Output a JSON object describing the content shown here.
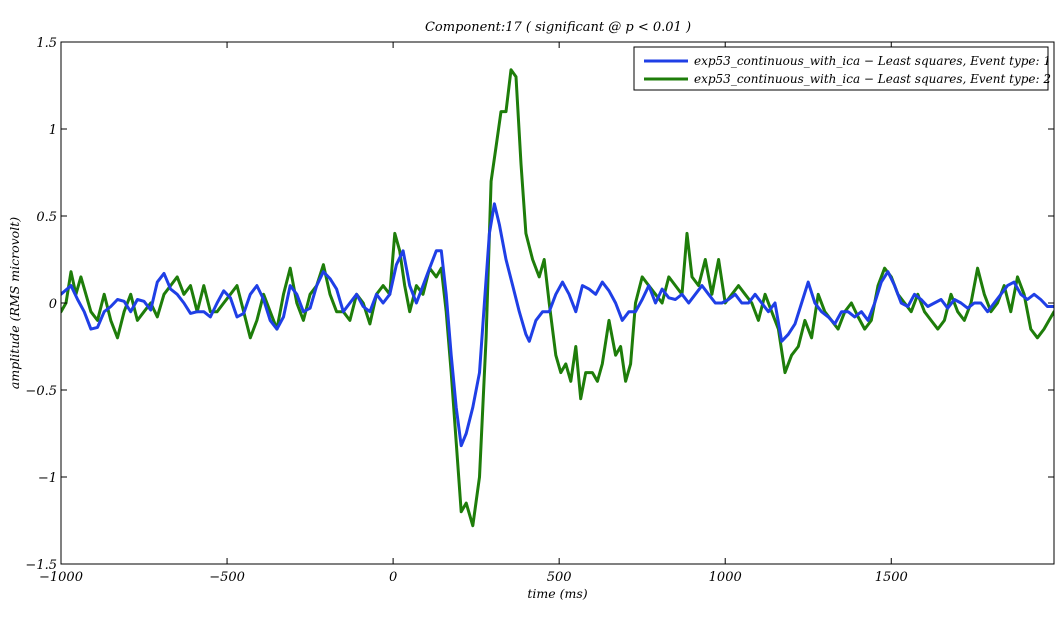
{
  "chart_data": {
    "type": "line",
    "title": "Component:17 ( significant @ p < 0.01 )",
    "xlabel": "time (ms)",
    "ylabel": "amplitude (RMS microvolt)",
    "xlim": [
      -1000,
      1990
    ],
    "ylim": [
      -1.5,
      1.5
    ],
    "xticks": [
      -1000,
      -500,
      0,
      500,
      1000,
      1500
    ],
    "xtick_labels": [
      "−1000",
      "−500",
      "0",
      "500",
      "1000",
      "1500"
    ],
    "yticks": [
      -1.5,
      -1,
      -0.5,
      0,
      0.5,
      1,
      1.5
    ],
    "ytick_labels": [
      "−1.5",
      "−1",
      "−0.5",
      "0",
      "0.5",
      "1",
      "1.5"
    ],
    "grid": false,
    "legend_position": "top-right",
    "series": [
      {
        "name": "exp53_continuous_with_ica − Least squares, Event type: 1",
        "color": "#1f3fe6",
        "points": [
          [
            -1000,
            0.05
          ],
          [
            -970,
            0.1
          ],
          [
            -950,
            0.02
          ],
          [
            -930,
            -0.05
          ],
          [
            -910,
            -0.15
          ],
          [
            -890,
            -0.14
          ],
          [
            -870,
            -0.05
          ],
          [
            -850,
            -0.02
          ],
          [
            -830,
            0.02
          ],
          [
            -810,
            0.01
          ],
          [
            -790,
            -0.05
          ],
          [
            -770,
            0.02
          ],
          [
            -750,
            0.01
          ],
          [
            -730,
            -0.04
          ],
          [
            -710,
            0.12
          ],
          [
            -690,
            0.17
          ],
          [
            -670,
            0.08
          ],
          [
            -650,
            0.05
          ],
          [
            -630,
            0.0
          ],
          [
            -610,
            -0.06
          ],
          [
            -590,
            -0.05
          ],
          [
            -570,
            -0.05
          ],
          [
            -550,
            -0.08
          ],
          [
            -530,
            0.0
          ],
          [
            -510,
            0.07
          ],
          [
            -490,
            0.03
          ],
          [
            -470,
            -0.08
          ],
          [
            -450,
            -0.06
          ],
          [
            -430,
            0.05
          ],
          [
            -410,
            0.1
          ],
          [
            -390,
            0.02
          ],
          [
            -370,
            -0.1
          ],
          [
            -350,
            -0.15
          ],
          [
            -330,
            -0.08
          ],
          [
            -310,
            0.1
          ],
          [
            -290,
            0.05
          ],
          [
            -270,
            -0.05
          ],
          [
            -250,
            -0.03
          ],
          [
            -230,
            0.1
          ],
          [
            -210,
            0.18
          ],
          [
            -190,
            0.14
          ],
          [
            -170,
            0.08
          ],
          [
            -150,
            -0.05
          ],
          [
            -130,
            0.0
          ],
          [
            -110,
            0.05
          ],
          [
            -90,
            -0.02
          ],
          [
            -70,
            -0.05
          ],
          [
            -50,
            0.05
          ],
          [
            -30,
            0.0
          ],
          [
            -10,
            0.05
          ],
          [
            10,
            0.22
          ],
          [
            30,
            0.3
          ],
          [
            50,
            0.1
          ],
          [
            70,
            0.0
          ],
          [
            90,
            0.1
          ],
          [
            110,
            0.2
          ],
          [
            130,
            0.3
          ],
          [
            145,
            0.3
          ],
          [
            160,
            0.05
          ],
          [
            175,
            -0.3
          ],
          [
            190,
            -0.6
          ],
          [
            205,
            -0.82
          ],
          [
            220,
            -0.75
          ],
          [
            240,
            -0.6
          ],
          [
            260,
            -0.4
          ],
          [
            275,
            0.0
          ],
          [
            290,
            0.4
          ],
          [
            305,
            0.57
          ],
          [
            320,
            0.45
          ],
          [
            340,
            0.25
          ],
          [
            360,
            0.1
          ],
          [
            380,
            -0.05
          ],
          [
            400,
            -0.18
          ],
          [
            410,
            -0.22
          ],
          [
            430,
            -0.1
          ],
          [
            450,
            -0.05
          ],
          [
            470,
            -0.05
          ],
          [
            490,
            0.05
          ],
          [
            510,
            0.12
          ],
          [
            530,
            0.05
          ],
          [
            550,
            -0.05
          ],
          [
            570,
            0.1
          ],
          [
            590,
            0.08
          ],
          [
            610,
            0.05
          ],
          [
            630,
            0.12
          ],
          [
            650,
            0.07
          ],
          [
            670,
            0.0
          ],
          [
            690,
            -0.1
          ],
          [
            710,
            -0.05
          ],
          [
            730,
            -0.05
          ],
          [
            750,
            0.02
          ],
          [
            770,
            0.1
          ],
          [
            790,
            0.0
          ],
          [
            810,
            0.08
          ],
          [
            830,
            0.03
          ],
          [
            850,
            0.02
          ],
          [
            870,
            0.05
          ],
          [
            890,
            0.0
          ],
          [
            910,
            0.05
          ],
          [
            930,
            0.1
          ],
          [
            950,
            0.05
          ],
          [
            970,
            0.0
          ],
          [
            990,
            0.0
          ],
          [
            1010,
            0.02
          ],
          [
            1030,
            0.05
          ],
          [
            1050,
            0.0
          ],
          [
            1070,
            0.0
          ],
          [
            1090,
            0.05
          ],
          [
            1110,
            0.0
          ],
          [
            1130,
            -0.05
          ],
          [
            1150,
            0.0
          ],
          [
            1170,
            -0.22
          ],
          [
            1190,
            -0.18
          ],
          [
            1210,
            -0.12
          ],
          [
            1230,
            0.0
          ],
          [
            1250,
            0.12
          ],
          [
            1270,
            0.0
          ],
          [
            1290,
            -0.05
          ],
          [
            1310,
            -0.08
          ],
          [
            1330,
            -0.12
          ],
          [
            1350,
            -0.05
          ],
          [
            1370,
            -0.05
          ],
          [
            1390,
            -0.08
          ],
          [
            1410,
            -0.05
          ],
          [
            1430,
            -0.1
          ],
          [
            1450,
            0.0
          ],
          [
            1470,
            0.12
          ],
          [
            1490,
            0.18
          ],
          [
            1510,
            0.1
          ],
          [
            1530,
            0.0
          ],
          [
            1550,
            -0.02
          ],
          [
            1570,
            0.05
          ],
          [
            1590,
            0.02
          ],
          [
            1610,
            -0.02
          ],
          [
            1630,
            0.0
          ],
          [
            1650,
            0.02
          ],
          [
            1670,
            -0.03
          ],
          [
            1690,
            0.02
          ],
          [
            1710,
            0.0
          ],
          [
            1730,
            -0.03
          ],
          [
            1750,
            0.0
          ],
          [
            1770,
            0.0
          ],
          [
            1790,
            -0.05
          ],
          [
            1810,
            0.0
          ],
          [
            1830,
            0.05
          ],
          [
            1850,
            0.1
          ],
          [
            1870,
            0.12
          ],
          [
            1890,
            0.05
          ],
          [
            1910,
            0.02
          ],
          [
            1930,
            0.05
          ],
          [
            1950,
            0.02
          ],
          [
            1970,
            -0.02
          ],
          [
            1990,
            -0.02
          ]
        ]
      },
      {
        "name": "exp53_continuous_with_ica − Least squares, Event type: 2",
        "color": "#1e7d0a",
        "points": [
          [
            -1000,
            -0.05
          ],
          [
            -985,
            0.0
          ],
          [
            -970,
            0.18
          ],
          [
            -955,
            0.05
          ],
          [
            -940,
            0.15
          ],
          [
            -925,
            0.05
          ],
          [
            -910,
            -0.05
          ],
          [
            -890,
            -0.1
          ],
          [
            -870,
            0.05
          ],
          [
            -850,
            -0.1
          ],
          [
            -830,
            -0.2
          ],
          [
            -810,
            -0.05
          ],
          [
            -790,
            0.05
          ],
          [
            -770,
            -0.1
          ],
          [
            -750,
            -0.05
          ],
          [
            -730,
            0.0
          ],
          [
            -710,
            -0.08
          ],
          [
            -690,
            0.05
          ],
          [
            -670,
            0.1
          ],
          [
            -650,
            0.15
          ],
          [
            -630,
            0.05
          ],
          [
            -610,
            0.1
          ],
          [
            -590,
            -0.05
          ],
          [
            -570,
            0.1
          ],
          [
            -550,
            -0.05
          ],
          [
            -530,
            -0.05
          ],
          [
            -510,
            0.0
          ],
          [
            -490,
            0.05
          ],
          [
            -470,
            0.1
          ],
          [
            -450,
            -0.05
          ],
          [
            -430,
            -0.2
          ],
          [
            -410,
            -0.1
          ],
          [
            -390,
            0.05
          ],
          [
            -370,
            -0.05
          ],
          [
            -350,
            -0.15
          ],
          [
            -330,
            0.05
          ],
          [
            -310,
            0.2
          ],
          [
            -290,
            0.0
          ],
          [
            -270,
            -0.1
          ],
          [
            -250,
            0.05
          ],
          [
            -230,
            0.1
          ],
          [
            -210,
            0.22
          ],
          [
            -190,
            0.05
          ],
          [
            -170,
            -0.05
          ],
          [
            -150,
            -0.05
          ],
          [
            -130,
            -0.1
          ],
          [
            -110,
            0.05
          ],
          [
            -90,
            0.0
          ],
          [
            -70,
            -0.12
          ],
          [
            -50,
            0.05
          ],
          [
            -30,
            0.1
          ],
          [
            -10,
            0.05
          ],
          [
            5,
            0.4
          ],
          [
            20,
            0.3
          ],
          [
            35,
            0.1
          ],
          [
            50,
            -0.05
          ],
          [
            70,
            0.1
          ],
          [
            90,
            0.05
          ],
          [
            110,
            0.2
          ],
          [
            130,
            0.15
          ],
          [
            145,
            0.2
          ],
          [
            160,
            -0.05
          ],
          [
            175,
            -0.4
          ],
          [
            190,
            -0.8
          ],
          [
            205,
            -1.2
          ],
          [
            220,
            -1.15
          ],
          [
            240,
            -1.28
          ],
          [
            260,
            -1.0
          ],
          [
            280,
            -0.2
          ],
          [
            295,
            0.7
          ],
          [
            310,
            0.9
          ],
          [
            325,
            1.1
          ],
          [
            340,
            1.1
          ],
          [
            355,
            1.34
          ],
          [
            370,
            1.3
          ],
          [
            385,
            0.8
          ],
          [
            400,
            0.4
          ],
          [
            420,
            0.25
          ],
          [
            440,
            0.15
          ],
          [
            455,
            0.25
          ],
          [
            470,
            0.0
          ],
          [
            490,
            -0.3
          ],
          [
            505,
            -0.4
          ],
          [
            520,
            -0.35
          ],
          [
            535,
            -0.45
          ],
          [
            550,
            -0.25
          ],
          [
            565,
            -0.55
          ],
          [
            580,
            -0.4
          ],
          [
            600,
            -0.4
          ],
          [
            615,
            -0.45
          ],
          [
            630,
            -0.35
          ],
          [
            650,
            -0.1
          ],
          [
            670,
            -0.3
          ],
          [
            685,
            -0.25
          ],
          [
            700,
            -0.45
          ],
          [
            715,
            -0.35
          ],
          [
            730,
            0.0
          ],
          [
            750,
            0.15
          ],
          [
            770,
            0.1
          ],
          [
            790,
            0.05
          ],
          [
            810,
            0.0
          ],
          [
            830,
            0.15
          ],
          [
            850,
            0.1
          ],
          [
            870,
            0.05
          ],
          [
            885,
            0.4
          ],
          [
            900,
            0.15
          ],
          [
            920,
            0.1
          ],
          [
            940,
            0.25
          ],
          [
            960,
            0.05
          ],
          [
            980,
            0.25
          ],
          [
            1000,
            0.0
          ],
          [
            1020,
            0.05
          ],
          [
            1040,
            0.1
          ],
          [
            1060,
            0.05
          ],
          [
            1080,
            0.0
          ],
          [
            1100,
            -0.1
          ],
          [
            1120,
            0.05
          ],
          [
            1140,
            -0.05
          ],
          [
            1160,
            -0.15
          ],
          [
            1180,
            -0.4
          ],
          [
            1200,
            -0.3
          ],
          [
            1220,
            -0.25
          ],
          [
            1240,
            -0.1
          ],
          [
            1260,
            -0.2
          ],
          [
            1280,
            0.05
          ],
          [
            1300,
            -0.05
          ],
          [
            1320,
            -0.1
          ],
          [
            1340,
            -0.15
          ],
          [
            1360,
            -0.05
          ],
          [
            1380,
            0.0
          ],
          [
            1400,
            -0.08
          ],
          [
            1420,
            -0.15
          ],
          [
            1440,
            -0.1
          ],
          [
            1460,
            0.1
          ],
          [
            1480,
            0.2
          ],
          [
            1500,
            0.15
          ],
          [
            1520,
            0.05
          ],
          [
            1540,
            0.0
          ],
          [
            1560,
            -0.05
          ],
          [
            1580,
            0.05
          ],
          [
            1600,
            -0.05
          ],
          [
            1620,
            -0.1
          ],
          [
            1640,
            -0.15
          ],
          [
            1660,
            -0.1
          ],
          [
            1680,
            0.05
          ],
          [
            1700,
            -0.05
          ],
          [
            1720,
            -0.1
          ],
          [
            1740,
            0.0
          ],
          [
            1760,
            0.2
          ],
          [
            1780,
            0.05
          ],
          [
            1800,
            -0.05
          ],
          [
            1820,
            0.0
          ],
          [
            1840,
            0.1
          ],
          [
            1860,
            -0.05
          ],
          [
            1880,
            0.15
          ],
          [
            1900,
            0.05
          ],
          [
            1920,
            -0.15
          ],
          [
            1940,
            -0.2
          ],
          [
            1960,
            -0.15
          ],
          [
            1975,
            -0.1
          ],
          [
            1990,
            -0.05
          ]
        ]
      }
    ]
  }
}
